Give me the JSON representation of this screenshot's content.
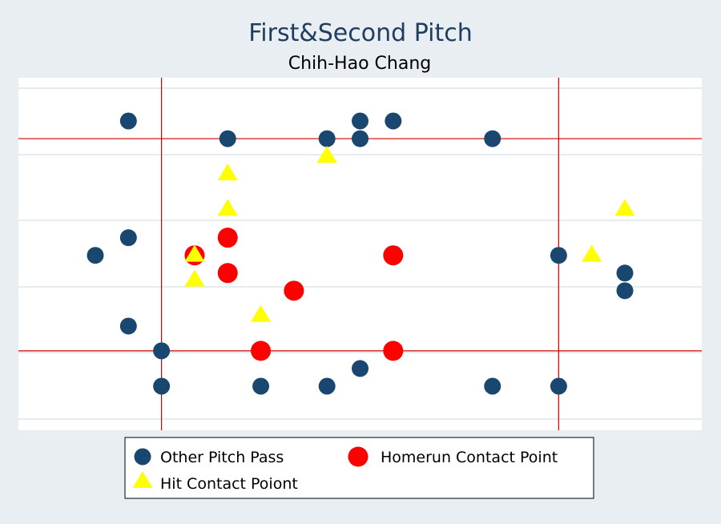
{
  "chart_data": {
    "type": "scatter",
    "title": "First&Second Pitch",
    "subtitle": "Chih-Hao Chang",
    "xlim": [
      0,
      100
    ],
    "ylim": [
      0,
      100
    ],
    "grid": true,
    "legend_placement": "bottom",
    "strike_zone": {
      "x": [
        21,
        81
      ],
      "y": [
        23,
        83
      ]
    },
    "series": [
      {
        "name": "Other Pitch Pass",
        "marker": "circle",
        "color": "#1a476f",
        "points": [
          [
            16,
            88
          ],
          [
            31,
            83
          ],
          [
            46,
            83
          ],
          [
            51,
            88
          ],
          [
            51,
            83
          ],
          [
            56,
            88
          ],
          [
            71,
            83
          ],
          [
            11,
            50
          ],
          [
            16,
            55
          ],
          [
            16,
            30
          ],
          [
            21,
            23
          ],
          [
            21,
            13
          ],
          [
            36,
            13
          ],
          [
            46,
            13
          ],
          [
            51,
            18
          ],
          [
            71,
            13
          ],
          [
            81,
            13
          ],
          [
            81,
            50
          ],
          [
            91,
            45
          ],
          [
            91,
            40
          ]
        ]
      },
      {
        "name": "Homerun Contact Point",
        "marker": "circle",
        "color": "#ff0000",
        "points": [
          [
            26,
            50
          ],
          [
            31,
            55
          ],
          [
            31,
            45
          ],
          [
            41,
            40
          ],
          [
            56,
            50
          ],
          [
            36,
            23
          ],
          [
            56,
            23
          ]
        ]
      },
      {
        "name": "Hit Contact Poiont",
        "marker": "triangle",
        "color": "#ffff00",
        "points": [
          [
            46,
            78
          ],
          [
            31,
            73
          ],
          [
            31,
            63
          ],
          [
            26,
            50
          ],
          [
            26,
            43
          ],
          [
            36,
            33
          ],
          [
            86,
            50
          ],
          [
            91,
            63
          ]
        ]
      }
    ]
  }
}
